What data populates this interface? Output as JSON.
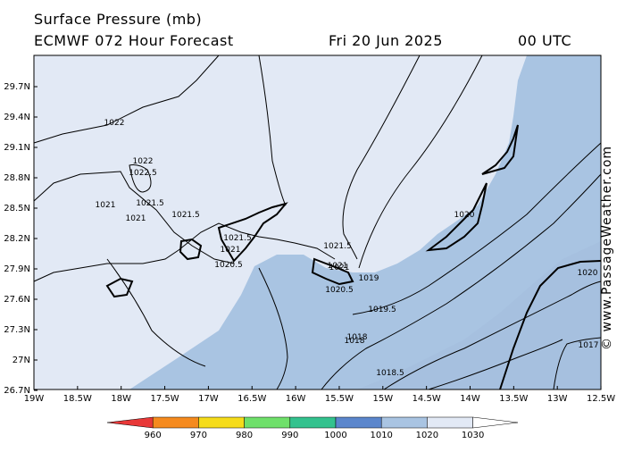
{
  "header": {
    "title": "Surface Pressure (mb)",
    "subtitle": "ECMWF 072 Hour Forecast",
    "date": "Fri 20 Jun 2025",
    "time": "00 UTC"
  },
  "map": {
    "lat_ticks": [
      "29.7N",
      "29.4N",
      "29.1N",
      "28.8N",
      "28.5N",
      "28.2N",
      "27.9N",
      "27.6N",
      "27.3N",
      "27N",
      "26.7N"
    ],
    "lon_ticks": [
      "19W",
      "18.5W",
      "18W",
      "17.5W",
      "17W",
      "16.5W",
      "16W",
      "15.5W",
      "15W",
      "14.5W",
      "14W",
      "13.5W",
      "13W",
      "12.5W"
    ],
    "contour_labels": [
      "1022",
      "1022",
      "1022.5",
      "1021",
      "1021",
      "1021.5",
      "1021.5",
      "1021.5",
      "1021",
      "1021",
      "1020.5",
      "1021.5",
      "1021",
      "1020.5",
      "1019",
      "1020",
      "1019.5",
      "1020",
      "1018",
      "1018.5",
      "1018",
      "1017"
    ],
    "colors": {
      "land": "#000000",
      "high": "#e2e9f5",
      "mid": "#a9c4e2",
      "sea": "#cddcef"
    }
  },
  "legend": {
    "ticks": [
      "960",
      "970",
      "980",
      "990",
      "1000",
      "1010",
      "1020",
      "1030"
    ],
    "colors": [
      "#e83838",
      "#f58a1e",
      "#f5dc1a",
      "#6fe06a",
      "#33c28e",
      "#5b86cc",
      "#a9c4e2",
      "#e2e9f5",
      "#ffffff"
    ]
  },
  "credit": "© www.PassageWeather.com"
}
